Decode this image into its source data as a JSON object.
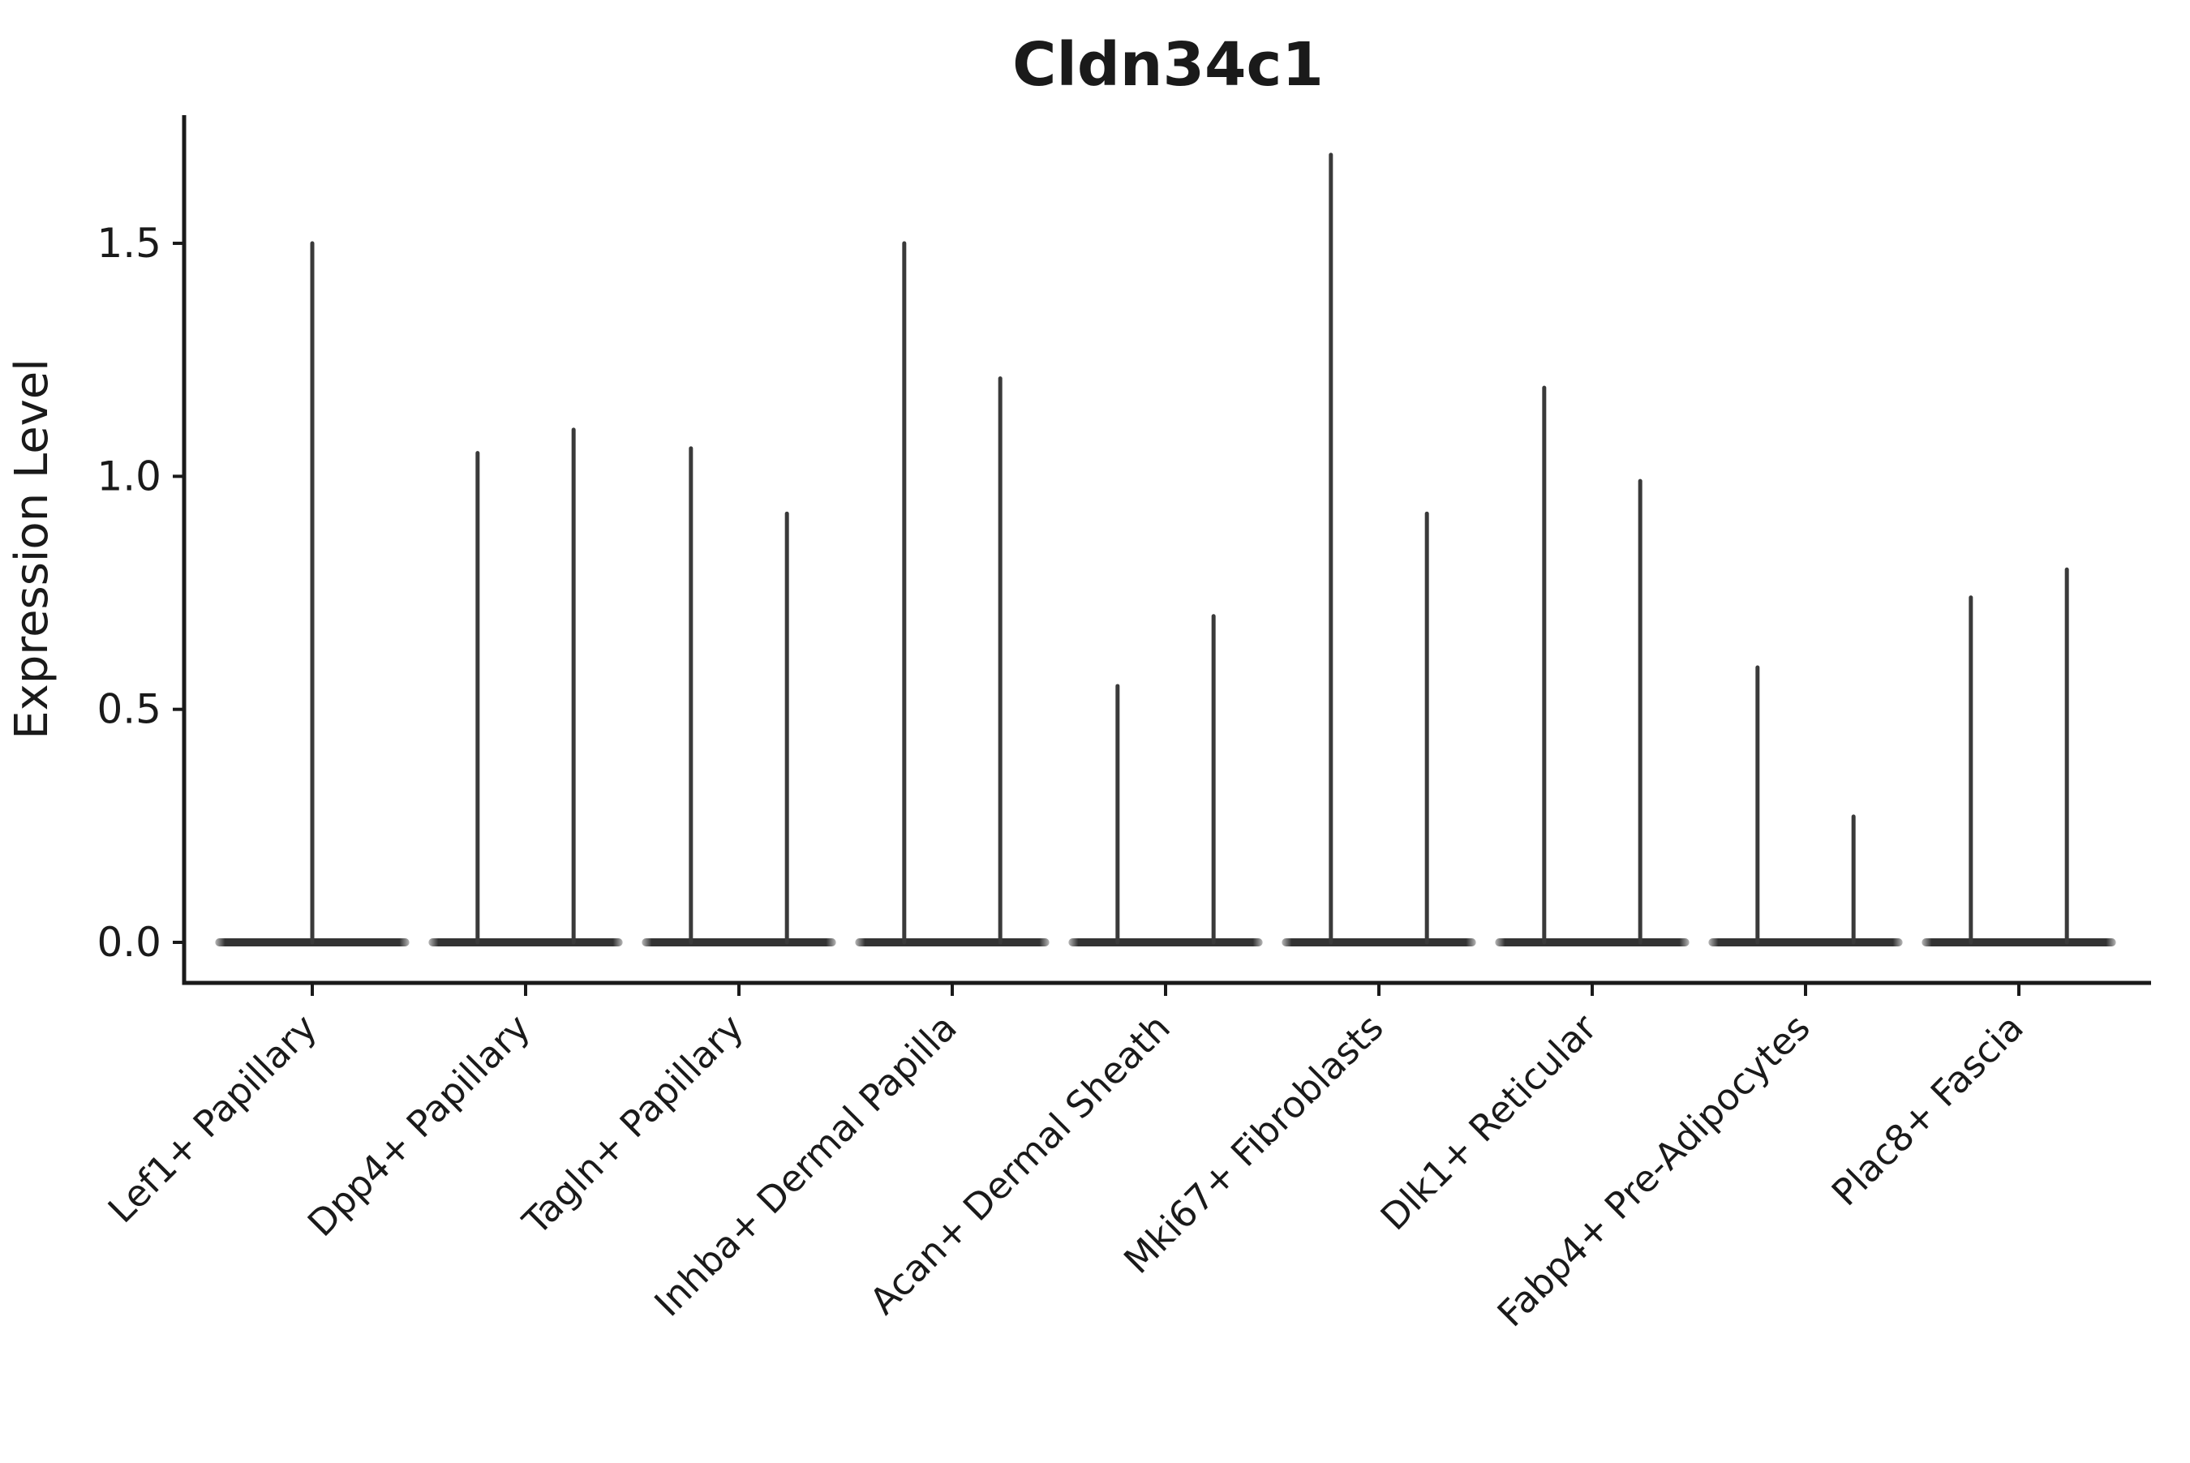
{
  "chart": {
    "title": "Cldn34c1",
    "y_axis_label": "Expression Level"
  },
  "chart_data": {
    "type": "violin",
    "title": "Cldn34c1",
    "xlabel": "",
    "ylabel": "Expression Level",
    "ylim": [
      -0.087,
      1.775
    ],
    "yticks": [
      0.0,
      0.5,
      1.0,
      1.5
    ],
    "ytick_labels": [
      "0.0",
      "0.5",
      "1.0",
      "1.5"
    ],
    "grid": false,
    "legend": "none",
    "background_color": "#ffffff",
    "ink_color": "#1a1a1a",
    "violin_color": "#333333",
    "spike_color": "#3a3a3a",
    "baseline_value": 0.0,
    "categories": [
      "Lef1+ Papillary",
      "Dpp4+ Papillary",
      "Tagln+ Papillary",
      "Inhba+ Dermal Papilla",
      "Acan+ Dermal Sheath",
      "Mki67+ Fibroblasts",
      "Dlk1+ Reticular",
      "Fabp4+ Pre-Adipocytes",
      "Plac8+ Fascia"
    ],
    "violins": [
      {
        "category": "Lef1+ Papillary",
        "spikes": [
          {
            "offset_frac": 0.0,
            "peak": 1.5
          }
        ]
      },
      {
        "category": "Dpp4+ Papillary",
        "spikes": [
          {
            "offset_frac": -0.225,
            "peak": 1.05
          },
          {
            "offset_frac": 0.225,
            "peak": 1.1
          }
        ]
      },
      {
        "category": "Tagln+ Papillary",
        "spikes": [
          {
            "offset_frac": -0.225,
            "peak": 1.06
          },
          {
            "offset_frac": 0.225,
            "peak": 0.92
          }
        ]
      },
      {
        "category": "Inhba+ Dermal Papilla",
        "spikes": [
          {
            "offset_frac": -0.225,
            "peak": 1.5
          },
          {
            "offset_frac": 0.225,
            "peak": 1.21
          }
        ]
      },
      {
        "category": "Acan+ Dermal Sheath",
        "spikes": [
          {
            "offset_frac": -0.225,
            "peak": 0.55
          },
          {
            "offset_frac": 0.225,
            "peak": 0.7
          }
        ]
      },
      {
        "category": "Mki67+ Fibroblasts",
        "spikes": [
          {
            "offset_frac": -0.225,
            "peak": 1.69
          },
          {
            "offset_frac": 0.225,
            "peak": 0.92
          }
        ]
      },
      {
        "category": "Dlk1+ Reticular",
        "spikes": [
          {
            "offset_frac": -0.225,
            "peak": 1.19
          },
          {
            "offset_frac": 0.225,
            "peak": 0.99
          }
        ]
      },
      {
        "category": "Fabp4+ Pre-Adipocytes",
        "spikes": [
          {
            "offset_frac": -0.225,
            "peak": 0.59
          },
          {
            "offset_frac": 0.225,
            "peak": 0.27
          }
        ]
      },
      {
        "category": "Plac8+ Fascia",
        "spikes": [
          {
            "offset_frac": -0.225,
            "peak": 0.74
          },
          {
            "offset_frac": 0.225,
            "peak": 0.8
          }
        ]
      }
    ]
  }
}
